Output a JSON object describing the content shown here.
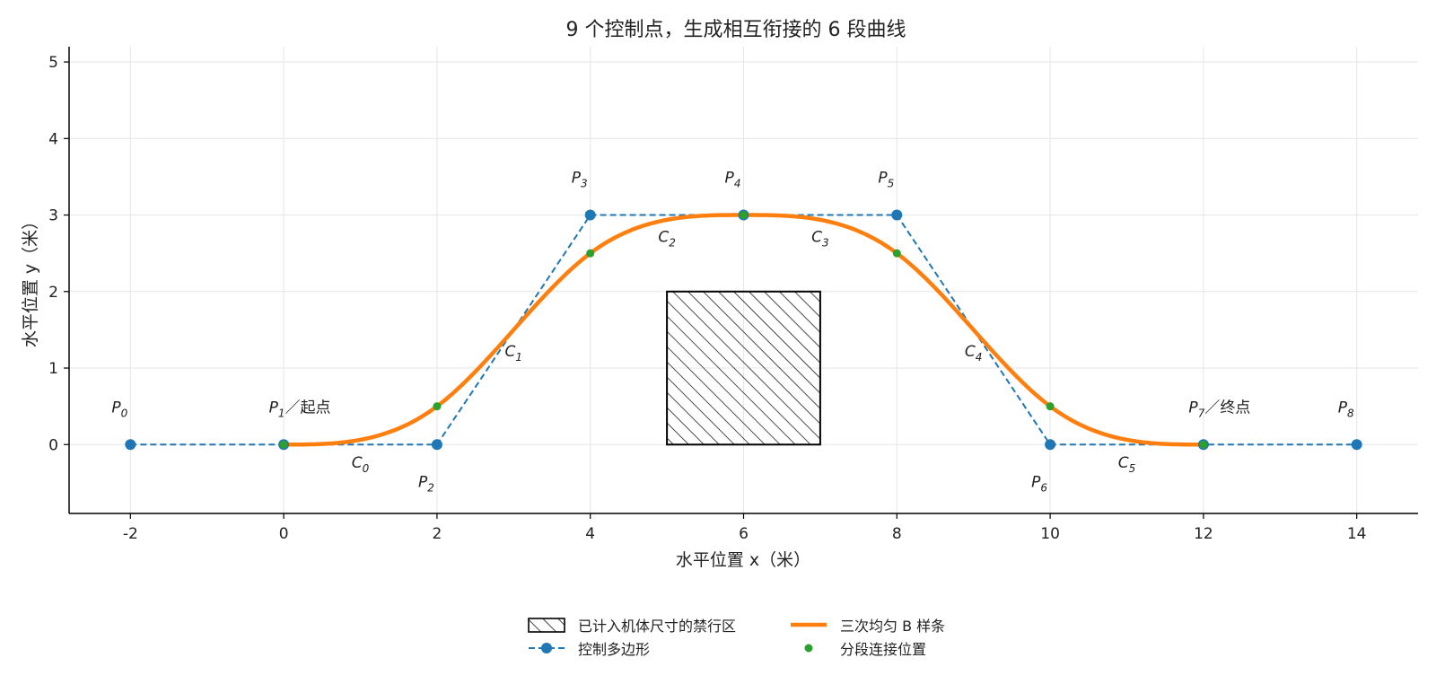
{
  "chart_data": {
    "type": "line",
    "title": "9 个控制点，生成相互衔接的 6 段曲线",
    "xlabel": "水平位置 x（米）",
    "ylabel": "水平位置 y（米）",
    "xlim": [
      -2.8,
      14.8
    ],
    "ylim": [
      -0.9,
      5.2
    ],
    "xticks": [
      -2,
      0,
      2,
      4,
      6,
      8,
      10,
      12,
      14
    ],
    "yticks": [
      0,
      1,
      2,
      3,
      4,
      5
    ],
    "grid": true,
    "colors": {
      "polygon": "#1f77b4",
      "spline": "#ff7f0e",
      "knots": "#2ca02c",
      "zone": "#000000"
    },
    "control_points": [
      {
        "x": -2,
        "y": 0,
        "name": "P",
        "sub": "0",
        "suffix": ""
      },
      {
        "x": 0,
        "y": 0,
        "name": "P",
        "sub": "1",
        "suffix": "／起点"
      },
      {
        "x": 2,
        "y": 0,
        "name": "P",
        "sub": "2",
        "suffix": ""
      },
      {
        "x": 4,
        "y": 3,
        "name": "P",
        "sub": "3",
        "suffix": ""
      },
      {
        "x": 6,
        "y": 3,
        "name": "P",
        "sub": "4",
        "suffix": ""
      },
      {
        "x": 8,
        "y": 3,
        "name": "P",
        "sub": "5",
        "suffix": ""
      },
      {
        "x": 10,
        "y": 0,
        "name": "P",
        "sub": "6",
        "suffix": ""
      },
      {
        "x": 12,
        "y": 0,
        "name": "P",
        "sub": "7",
        "suffix": "／终点"
      },
      {
        "x": 14,
        "y": 0,
        "name": "P",
        "sub": "8",
        "suffix": ""
      }
    ],
    "segment_joints": [
      {
        "x": 0,
        "y": 0
      },
      {
        "x": 2,
        "y": 0.5
      },
      {
        "x": 4,
        "y": 2.5
      },
      {
        "x": 6,
        "y": 3
      },
      {
        "x": 8,
        "y": 2.5
      },
      {
        "x": 10,
        "y": 0.5
      },
      {
        "x": 12,
        "y": 0
      }
    ],
    "segment_labels": [
      {
        "name": "C",
        "sub": "0",
        "x": 1.0,
        "y": -0.3
      },
      {
        "name": "C",
        "sub": "1",
        "x": 3.0,
        "y": 1.15
      },
      {
        "name": "C",
        "sub": "2",
        "x": 5.0,
        "y": 2.65
      },
      {
        "name": "C",
        "sub": "3",
        "x": 7.0,
        "y": 2.65
      },
      {
        "name": "C",
        "sub": "4",
        "x": 9.0,
        "y": 1.15
      },
      {
        "name": "C",
        "sub": "5",
        "x": 11.0,
        "y": -0.3
      }
    ],
    "forbidden_zone": {
      "x0": 5,
      "x1": 7,
      "y0": 0,
      "y1": 2
    },
    "legend": {
      "placement": "bottom-center",
      "zone": "已计入机体尺寸的禁行区",
      "polygon": "控制多边形",
      "spline": "三次均匀 B 样条",
      "knots": "分段连接位置"
    }
  }
}
